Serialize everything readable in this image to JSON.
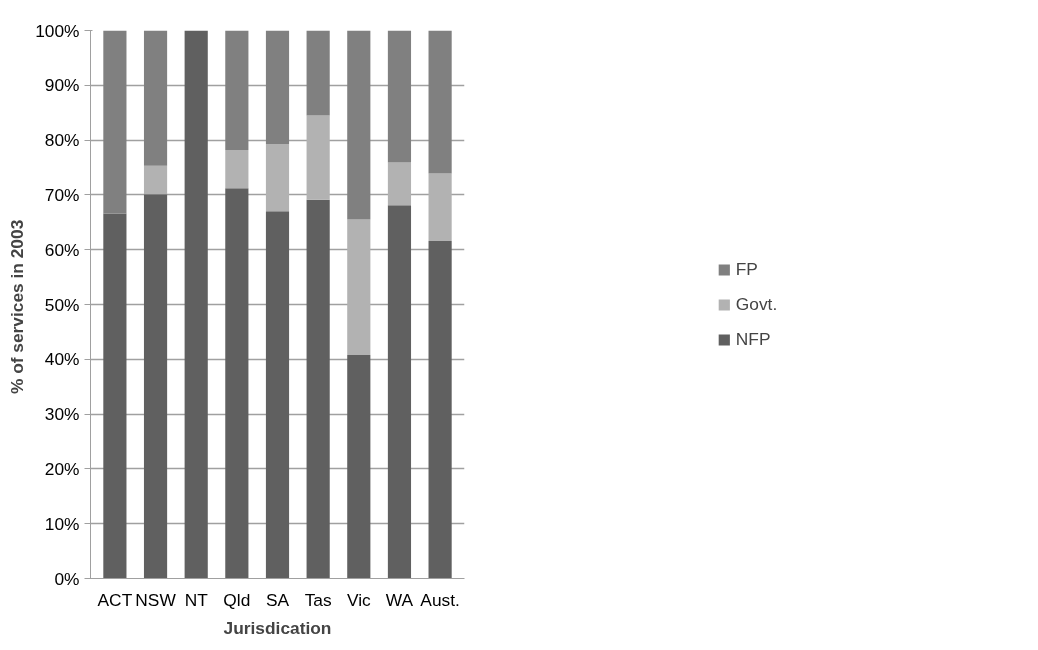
{
  "chart_data": {
    "type": "bar",
    "stacked": true,
    "xlabel": "Jurisdication",
    "ylabel": "% of  services in 2003",
    "categories": [
      "ACT",
      "NSW",
      "NT",
      "Qld",
      "SA",
      "Tas",
      "Vic",
      "WA",
      "Aust."
    ],
    "series": [
      {
        "name": "NFP",
        "color": "#606060",
        "values": [
          66.6,
          70.1,
          100,
          71.2,
          67.0,
          69.1,
          40.8,
          68.1,
          61.6
        ]
      },
      {
        "name": "Govt.",
        "color": "#b2b2b2",
        "values": [
          0,
          5.2,
          0,
          7.0,
          12.3,
          15.4,
          24.7,
          7.8,
          12.3
        ]
      },
      {
        "name": "FP",
        "color": "#808080",
        "values": [
          33.4,
          24.7,
          0,
          21.8,
          20.7,
          15.5,
          34.5,
          24.1,
          26.1
        ]
      }
    ],
    "ylim": [
      0,
      100
    ],
    "yticks": [
      {
        "value": 0,
        "label": "0%"
      },
      {
        "value": 10,
        "label": "10%"
      },
      {
        "value": 20,
        "label": "20%"
      },
      {
        "value": 30,
        "label": "30%"
      },
      {
        "value": 40,
        "label": "40%"
      },
      {
        "value": 50,
        "label": "50%"
      },
      {
        "value": 60,
        "label": "60%"
      },
      {
        "value": 70,
        "label": "70%"
      },
      {
        "value": 80,
        "label": "80%"
      },
      {
        "value": 90,
        "label": "90%"
      },
      {
        "value": 100,
        "label": "100%"
      }
    ],
    "grid": "y",
    "legend": "right"
  }
}
